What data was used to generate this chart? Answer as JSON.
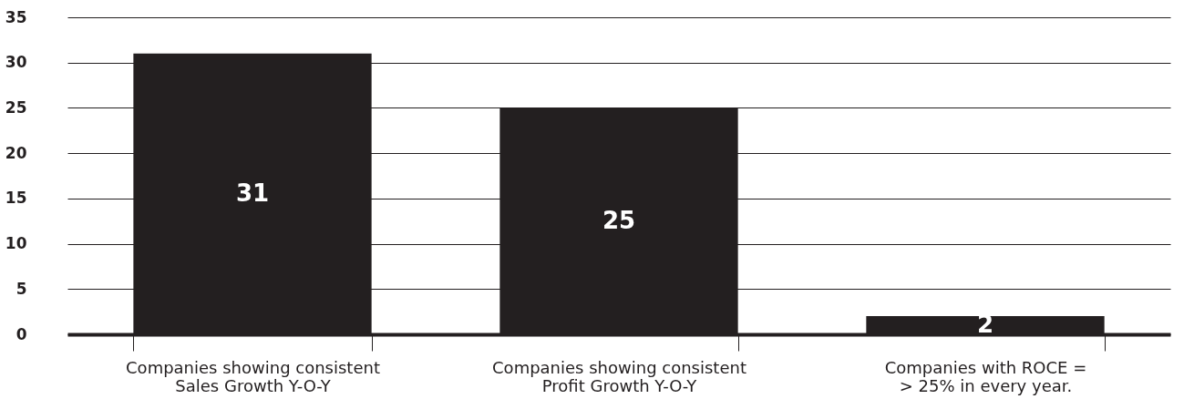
{
  "chart_data": {
    "type": "bar",
    "categories": [
      "Companies showing consistent\nSales Growth Y-O-Y",
      "Companies showing consistent\nProfit Growth Y-O-Y",
      "Companies with ROCE =\n> 25% in every year."
    ],
    "values": [
      31,
      25,
      2
    ],
    "color": "#231f20",
    "ylim": [
      0,
      35
    ],
    "yticks": [
      0,
      5,
      10,
      15,
      20,
      25,
      30,
      35
    ],
    "grid": "y",
    "data_labels": true
  }
}
